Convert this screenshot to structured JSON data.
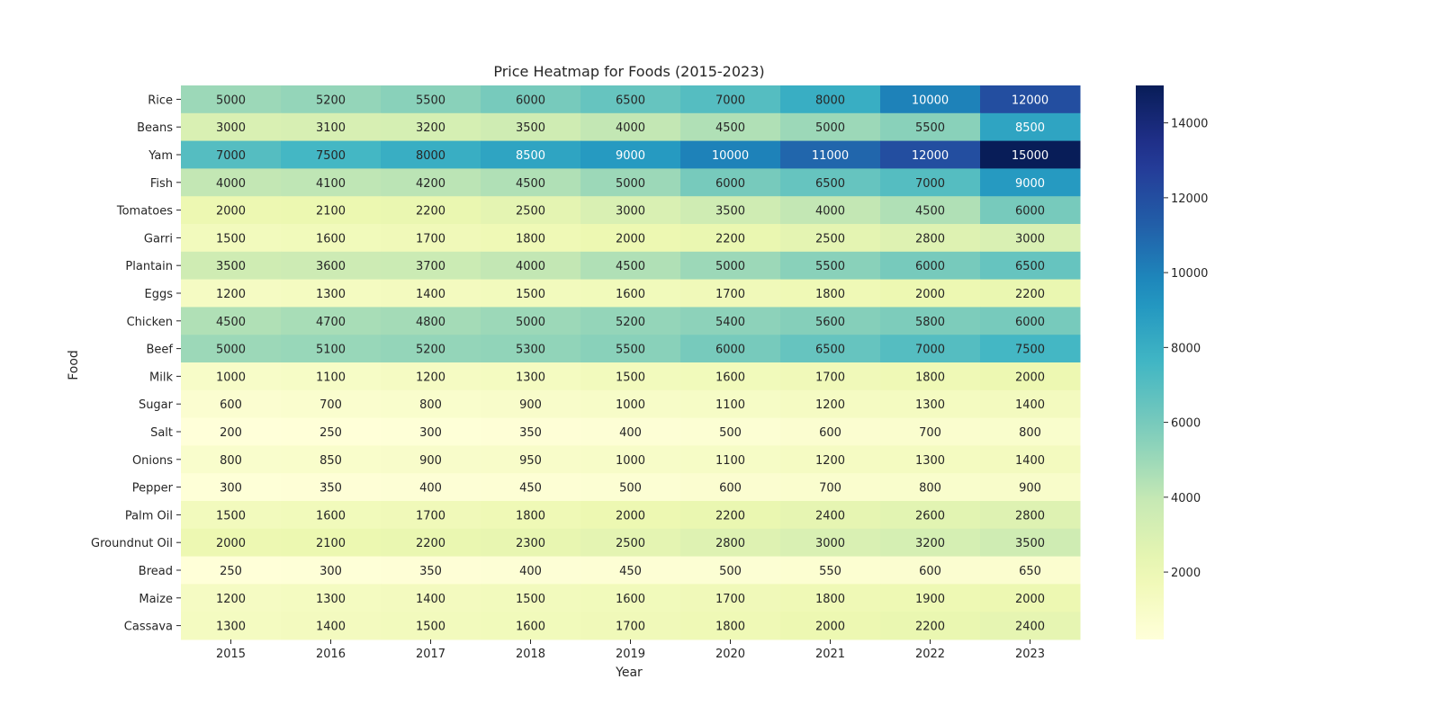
{
  "chart_data": {
    "type": "heatmap",
    "title": "Price Heatmap for Foods (2015-2023)",
    "xlabel": "Year",
    "ylabel": "Food",
    "columns": [
      "2015",
      "2016",
      "2017",
      "2018",
      "2019",
      "2020",
      "2021",
      "2022",
      "2023"
    ],
    "rows": [
      "Rice",
      "Beans",
      "Yam",
      "Fish",
      "Tomatoes",
      "Garri",
      "Plantain",
      "Eggs",
      "Chicken",
      "Beef",
      "Milk",
      "Sugar",
      "Salt",
      "Onions",
      "Pepper",
      "Palm Oil",
      "Groundnut Oil",
      "Bread",
      "Maize",
      "Cassava"
    ],
    "values": [
      [
        5000,
        5200,
        5500,
        6000,
        6500,
        7000,
        8000,
        10000,
        12000
      ],
      [
        3000,
        3100,
        3200,
        3500,
        4000,
        4500,
        5000,
        5500,
        8500
      ],
      [
        7000,
        7500,
        8000,
        8500,
        9000,
        10000,
        11000,
        12000,
        15000
      ],
      [
        4000,
        4100,
        4200,
        4500,
        5000,
        6000,
        6500,
        7000,
        9000
      ],
      [
        2000,
        2100,
        2200,
        2500,
        3000,
        3500,
        4000,
        4500,
        6000
      ],
      [
        1500,
        1600,
        1700,
        1800,
        2000,
        2200,
        2500,
        2800,
        3000
      ],
      [
        3500,
        3600,
        3700,
        4000,
        4500,
        5000,
        5500,
        6000,
        6500
      ],
      [
        1200,
        1300,
        1400,
        1500,
        1600,
        1700,
        1800,
        2000,
        2200
      ],
      [
        4500,
        4700,
        4800,
        5000,
        5200,
        5400,
        5600,
        5800,
        6000
      ],
      [
        5000,
        5100,
        5200,
        5300,
        5500,
        6000,
        6500,
        7000,
        7500
      ],
      [
        1000,
        1100,
        1200,
        1300,
        1500,
        1600,
        1700,
        1800,
        2000
      ],
      [
        600,
        700,
        800,
        900,
        1000,
        1100,
        1200,
        1300,
        1400
      ],
      [
        200,
        250,
        300,
        350,
        400,
        500,
        600,
        700,
        800
      ],
      [
        800,
        850,
        900,
        950,
        1000,
        1100,
        1200,
        1300,
        1400
      ],
      [
        300,
        350,
        400,
        450,
        500,
        600,
        700,
        800,
        900
      ],
      [
        1500,
        1600,
        1700,
        1800,
        2000,
        2200,
        2400,
        2600,
        2800
      ],
      [
        2000,
        2100,
        2200,
        2300,
        2500,
        2800,
        3000,
        3200,
        3500
      ],
      [
        250,
        300,
        350,
        400,
        450,
        500,
        550,
        600,
        650
      ],
      [
        1200,
        1300,
        1400,
        1500,
        1600,
        1700,
        1800,
        1900,
        2000
      ],
      [
        1300,
        1400,
        1500,
        1600,
        1700,
        1800,
        2000,
        2200,
        2400
      ]
    ],
    "colormap": "YlGnBu",
    "colorbar": {
      "range": [
        200,
        15000
      ],
      "ticks": [
        2000,
        4000,
        6000,
        8000,
        10000,
        12000,
        14000
      ]
    },
    "annotations": true
  }
}
